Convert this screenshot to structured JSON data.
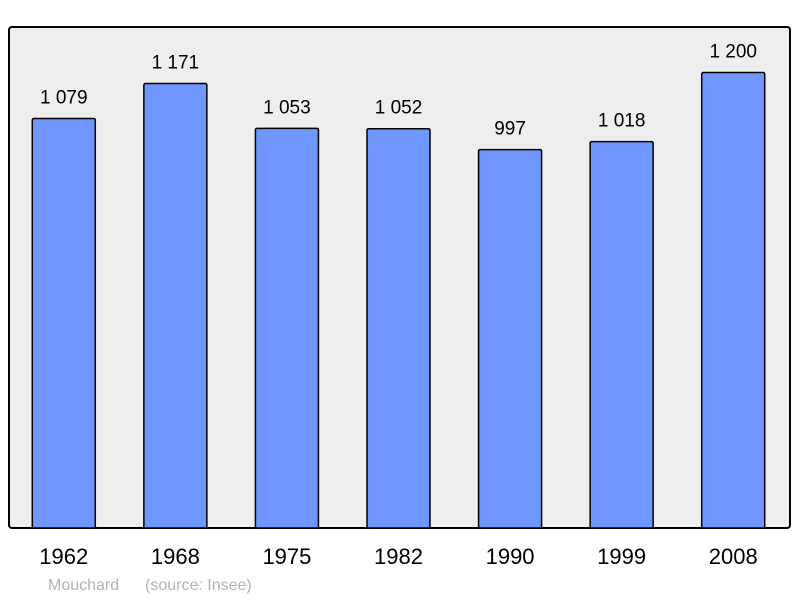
{
  "chart_data": {
    "type": "bar",
    "categories": [
      "1962",
      "1968",
      "1975",
      "1982",
      "1990",
      "1999",
      "2008"
    ],
    "values": [
      1079,
      1171,
      1053,
      1052,
      997,
      1018,
      1200
    ],
    "value_labels": [
      "1 079",
      "1 171",
      "1 053",
      "1 052",
      "997",
      "1 018",
      "1 200"
    ],
    "ylim": [
      0,
      1320
    ],
    "grid": false,
    "colors": {
      "bar": "#7097ff",
      "plot_background": "#eeeeee",
      "border": "#000000",
      "footer_text": "#b3b3b3"
    }
  },
  "footer": {
    "author": "Mouchard",
    "source": "(source: Insee)"
  }
}
